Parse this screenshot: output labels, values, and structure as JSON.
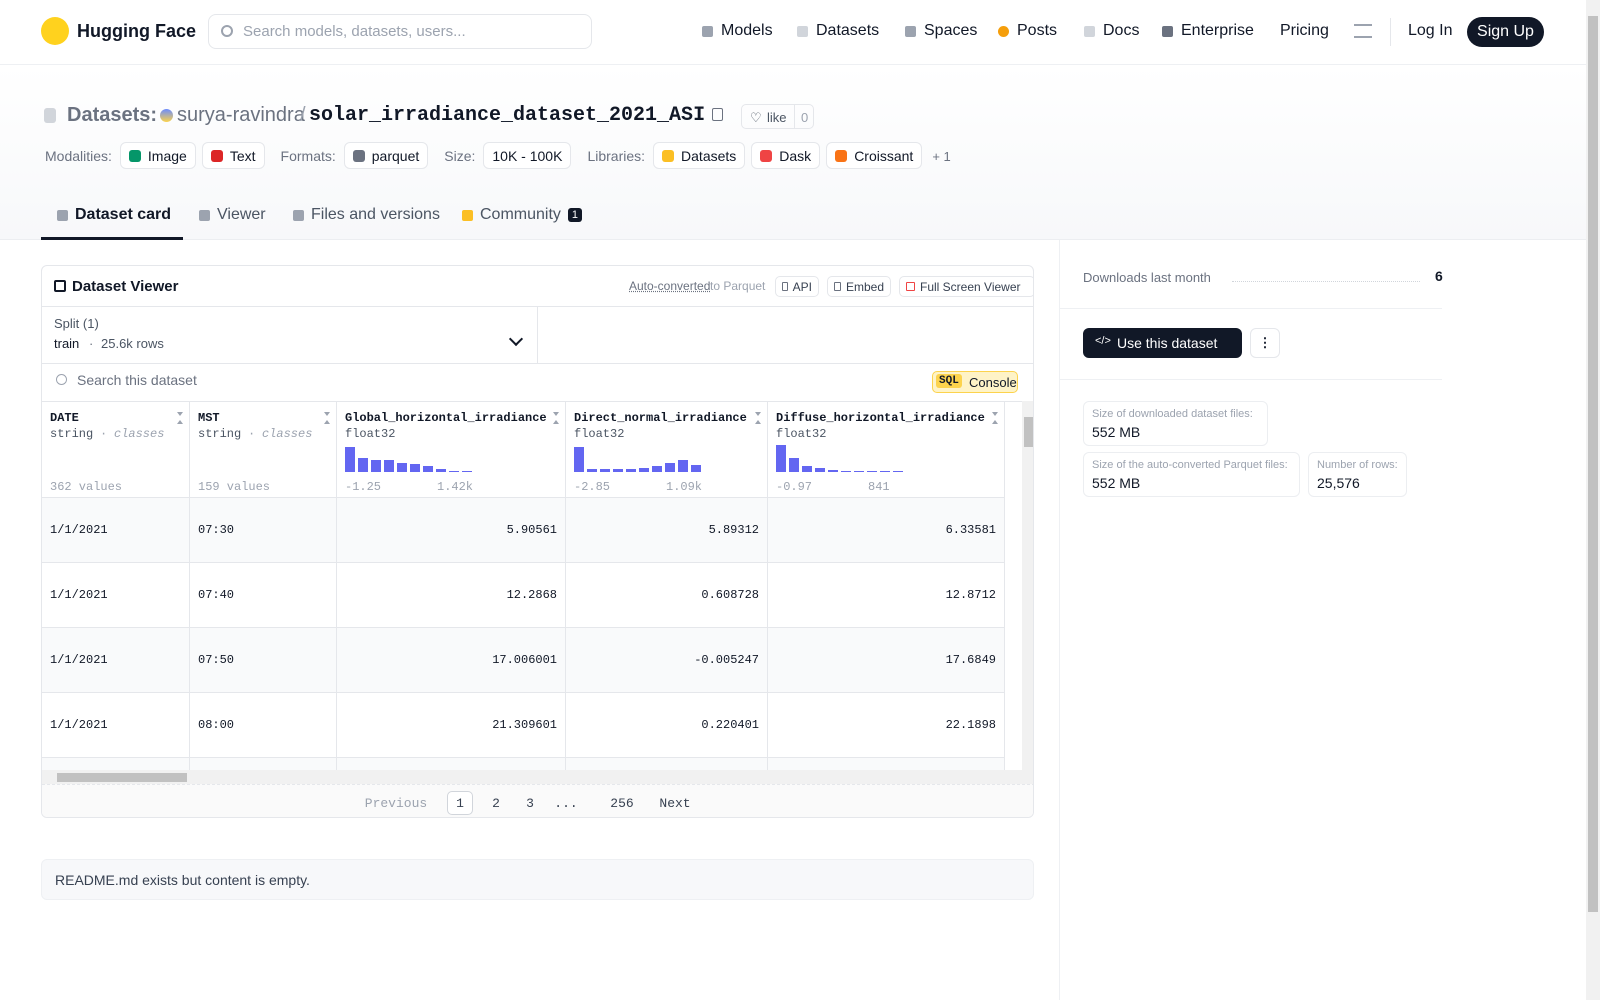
{
  "header": {
    "brand": "Hugging Face",
    "search_placeholder": "Search models, datasets, users...",
    "nav": [
      "Models",
      "Datasets",
      "Spaces",
      "Posts",
      "Docs",
      "Enterprise",
      "Pricing"
    ],
    "login": "Log In",
    "signup": "Sign Up"
  },
  "repo": {
    "section": "Datasets:",
    "owner": "surya-ravindra",
    "separator": "/",
    "name": "solar_irradiance_dataset_2021_ASI",
    "like": "like",
    "likes": 0,
    "tags": [
      {
        "label": "Modalities:",
        "items": [
          "Image",
          "Text"
        ]
      },
      {
        "label": "Formats:",
        "items": [
          "parquet"
        ]
      },
      {
        "label": "Size:",
        "items": [
          "10K - 100K"
        ]
      },
      {
        "label": "Libraries:",
        "items": [
          "Datasets",
          "Dask",
          "Croissant"
        ]
      }
    ],
    "more_libraries": "+ 1"
  },
  "tabs": [
    {
      "label": "Dataset card"
    },
    {
      "label": "Viewer"
    },
    {
      "label": "Files and versions"
    },
    {
      "label": "Community",
      "badge": 1
    }
  ],
  "viewer": {
    "title": "Dataset Viewer",
    "auto_converted": "Auto-converted",
    "to_parquet": "to Parquet",
    "buttons": [
      "API",
      "Embed",
      "Full Screen Viewer"
    ],
    "split_label": "Split (1)",
    "split": "train",
    "dot": "·",
    "rows_count": "25.6k rows",
    "search_placeholder": "Search this dataset",
    "sql": "SQL",
    "console": "Console",
    "columns": [
      {
        "name": "DATE",
        "type": "string",
        "kind": "classes",
        "summary": "362 values"
      },
      {
        "name": "MST",
        "type": "string",
        "kind": "classes",
        "summary": "159 values"
      },
      {
        "name": "Global_horizontal_irradiance",
        "type": "float32",
        "min": "-1.25",
        "max": "1.42k",
        "histogram": [
          25,
          14,
          12,
          12,
          9,
          8,
          6,
          3,
          1,
          1
        ]
      },
      {
        "name": "Direct_normal_irradiance",
        "type": "float32",
        "min": "-2.85",
        "max": "1.09k",
        "histogram": [
          25,
          3,
          3,
          3,
          3,
          4,
          6,
          9,
          12,
          7
        ]
      },
      {
        "name": "Diffuse_horizontal_irradiance",
        "type": "float32",
        "min": "-0.97",
        "max": "841",
        "histogram": [
          27,
          14,
          6,
          4,
          2,
          1,
          1,
          1,
          1,
          1
        ]
      }
    ],
    "rows": [
      [
        "1/1/2021",
        "07:30",
        "5.90561",
        "5.89312",
        "6.33581"
      ],
      [
        "1/1/2021",
        "07:40",
        "12.2868",
        "0.608728",
        "12.8712"
      ],
      [
        "1/1/2021",
        "07:50",
        "17.006001",
        "-0.005247",
        "17.6849"
      ],
      [
        "1/1/2021",
        "08:00",
        "21.309601",
        "0.220401",
        "22.1898"
      ]
    ],
    "pagination": {
      "previous": "Previous",
      "pages": [
        "1",
        "2",
        "3",
        "...",
        "256"
      ],
      "next": "Next"
    }
  },
  "readme": "README.md exists but content is empty.",
  "sidebar": {
    "downloads_label": "Downloads last month",
    "downloads": 6,
    "use_button": "Use this dataset",
    "sizes": [
      {
        "label": "Size of downloaded dataset files:",
        "value": "552 MB"
      },
      {
        "label": "Size of the auto-converted Parquet files:",
        "value": "552 MB"
      },
      {
        "label": "Number of rows:",
        "value": "25,576"
      }
    ]
  }
}
